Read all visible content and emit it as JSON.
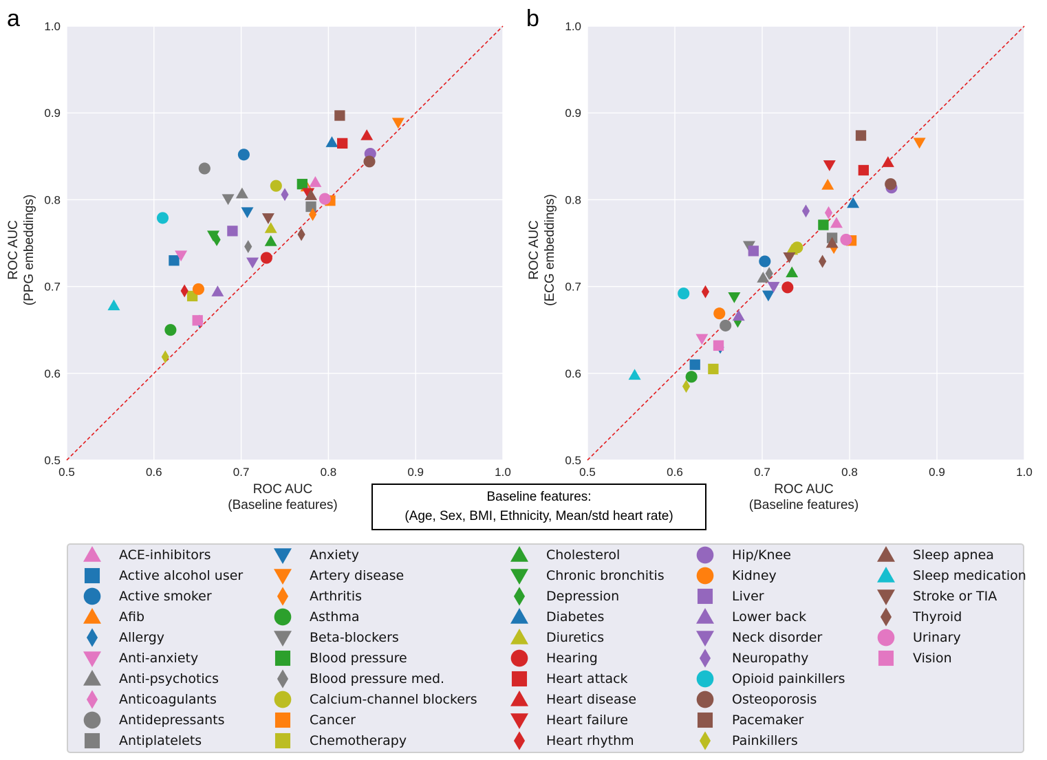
{
  "figure": {
    "baseline_title": "Baseline features:",
    "baseline_text": "(Age, Sex, BMI, Ethnicity, Mean/std heart rate)"
  },
  "colors": {
    "blue": "#1f77b4",
    "orange": "#ff7f0e",
    "green": "#2ca02c",
    "red": "#d62728",
    "purple": "#9467bd",
    "brown": "#8c564b",
    "pink": "#e377c2",
    "gray": "#7f7f7f",
    "olive": "#bcbd22",
    "cyan": "#17becf"
  },
  "legend": [
    {
      "label": "ACE-inhibitors",
      "color": "pink",
      "marker": "tri-up"
    },
    {
      "label": "Active alcohol user",
      "color": "blue",
      "marker": "square"
    },
    {
      "label": "Active smoker",
      "color": "blue",
      "marker": "circle"
    },
    {
      "label": "Afib",
      "color": "orange",
      "marker": "tri-up"
    },
    {
      "label": "Allergy",
      "color": "blue",
      "marker": "diamond"
    },
    {
      "label": "Anti-anxiety",
      "color": "pink",
      "marker": "tri-down"
    },
    {
      "label": "Anti-psychotics",
      "color": "gray",
      "marker": "tri-up"
    },
    {
      "label": "Anticoagulants",
      "color": "pink",
      "marker": "diamond"
    },
    {
      "label": "Antidepressants",
      "color": "gray",
      "marker": "circle"
    },
    {
      "label": "Antiplatelets",
      "color": "gray",
      "marker": "square"
    },
    {
      "label": "Anxiety",
      "color": "blue",
      "marker": "tri-down"
    },
    {
      "label": "Artery disease",
      "color": "orange",
      "marker": "tri-down"
    },
    {
      "label": "Arthritis",
      "color": "orange",
      "marker": "diamond"
    },
    {
      "label": "Asthma",
      "color": "green",
      "marker": "circle"
    },
    {
      "label": "Beta-blockers",
      "color": "gray",
      "marker": "tri-down"
    },
    {
      "label": "Blood pressure",
      "color": "green",
      "marker": "square"
    },
    {
      "label": "Blood pressure med.",
      "color": "gray",
      "marker": "diamond"
    },
    {
      "label": "Calcium-channel blockers",
      "color": "olive",
      "marker": "circle"
    },
    {
      "label": "Cancer",
      "color": "orange",
      "marker": "square"
    },
    {
      "label": "Chemotherapy",
      "color": "olive",
      "marker": "square"
    },
    {
      "label": "Cholesterol",
      "color": "green",
      "marker": "tri-up"
    },
    {
      "label": "Chronic bronchitis",
      "color": "green",
      "marker": "tri-down"
    },
    {
      "label": "Depression",
      "color": "green",
      "marker": "diamond"
    },
    {
      "label": "Diabetes",
      "color": "blue",
      "marker": "tri-up"
    },
    {
      "label": "Diuretics",
      "color": "olive",
      "marker": "tri-up"
    },
    {
      "label": "Hearing",
      "color": "red",
      "marker": "circle"
    },
    {
      "label": "Heart attack",
      "color": "red",
      "marker": "square"
    },
    {
      "label": "Heart disease",
      "color": "red",
      "marker": "tri-up"
    },
    {
      "label": "Heart failure",
      "color": "red",
      "marker": "tri-down"
    },
    {
      "label": "Heart rhythm",
      "color": "red",
      "marker": "diamond"
    },
    {
      "label": "Hip/Knee",
      "color": "purple",
      "marker": "circle"
    },
    {
      "label": "Kidney",
      "color": "orange",
      "marker": "circle"
    },
    {
      "label": "Liver",
      "color": "purple",
      "marker": "square"
    },
    {
      "label": "Lower back",
      "color": "purple",
      "marker": "tri-up"
    },
    {
      "label": "Neck disorder",
      "color": "purple",
      "marker": "tri-down"
    },
    {
      "label": "Neuropathy",
      "color": "purple",
      "marker": "diamond"
    },
    {
      "label": "Opioid painkillers",
      "color": "cyan",
      "marker": "circle"
    },
    {
      "label": "Osteoporosis",
      "color": "brown",
      "marker": "circle"
    },
    {
      "label": "Pacemaker",
      "color": "brown",
      "marker": "square"
    },
    {
      "label": "Painkillers",
      "color": "olive",
      "marker": "diamond"
    },
    {
      "label": "Sleep apnea",
      "color": "brown",
      "marker": "tri-up"
    },
    {
      "label": "Sleep medication",
      "color": "cyan",
      "marker": "tri-up"
    },
    {
      "label": "Stroke or TIA",
      "color": "brown",
      "marker": "tri-down"
    },
    {
      "label": "Thyroid",
      "color": "brown",
      "marker": "diamond"
    },
    {
      "label": "Urinary",
      "color": "pink",
      "marker": "circle"
    },
    {
      "label": "Vision",
      "color": "pink",
      "marker": "square"
    }
  ],
  "chart_data": [
    {
      "type": "scatter",
      "panel_label": "a",
      "xlabel": [
        "ROC AUC",
        "(Baseline features)"
      ],
      "ylabel": [
        "ROC AUC",
        "(PPG embeddings)"
      ],
      "xlim": [
        0.5,
        1.0
      ],
      "ylim": [
        0.5,
        1.0
      ],
      "xticks": [
        "0.5",
        "0.6",
        "0.7",
        "0.8",
        "0.9",
        "1.0"
      ],
      "yticks": [
        "0.5",
        "0.6",
        "0.7",
        "0.8",
        "0.9",
        "1.0"
      ],
      "diagonal": true,
      "points": [
        {
          "label": "ACE-inhibitors",
          "x": 0.785,
          "y": 0.82
        },
        {
          "label": "Active alcohol user",
          "x": 0.623,
          "y": 0.73
        },
        {
          "label": "Active smoker",
          "x": 0.703,
          "y": 0.852
        },
        {
          "label": "Afib",
          "x": 0.775,
          "y": 0.815
        },
        {
          "label": "Allergy",
          "x": 0.652,
          "y": 0.66
        },
        {
          "label": "Anti-anxiety",
          "x": 0.631,
          "y": 0.736
        },
        {
          "label": "Anti-psychotics",
          "x": 0.701,
          "y": 0.807
        },
        {
          "label": "Anticoagulants",
          "x": 0.776,
          "y": 0.81
        },
        {
          "label": "Antidepressants",
          "x": 0.658,
          "y": 0.836
        },
        {
          "label": "Antiplatelets",
          "x": 0.78,
          "y": 0.792
        },
        {
          "label": "Anxiety",
          "x": 0.707,
          "y": 0.786
        },
        {
          "label": "Artery disease",
          "x": 0.88,
          "y": 0.889
        },
        {
          "label": "Arthritis",
          "x": 0.782,
          "y": 0.783
        },
        {
          "label": "Asthma",
          "x": 0.619,
          "y": 0.65
        },
        {
          "label": "Beta-blockers",
          "x": 0.685,
          "y": 0.801
        },
        {
          "label": "Blood pressure",
          "x": 0.77,
          "y": 0.818
        },
        {
          "label": "Blood pressure med.",
          "x": 0.708,
          "y": 0.746
        },
        {
          "label": "Calcium-channel blockers",
          "x": 0.74,
          "y": 0.816
        },
        {
          "label": "Cancer",
          "x": 0.802,
          "y": 0.799
        },
        {
          "label": "Chemotherapy",
          "x": 0.644,
          "y": 0.689
        },
        {
          "label": "Cholesterol",
          "x": 0.734,
          "y": 0.752
        },
        {
          "label": "Chronic bronchitis",
          "x": 0.668,
          "y": 0.759
        },
        {
          "label": "Depression",
          "x": 0.672,
          "y": 0.754
        },
        {
          "label": "Diabetes",
          "x": 0.804,
          "y": 0.866
        },
        {
          "label": "Diuretics",
          "x": 0.734,
          "y": 0.767
        },
        {
          "label": "Hearing",
          "x": 0.729,
          "y": 0.733
        },
        {
          "label": "Heart attack",
          "x": 0.816,
          "y": 0.865
        },
        {
          "label": "Heart disease",
          "x": 0.844,
          "y": 0.874
        },
        {
          "label": "Heart failure",
          "x": 0.777,
          "y": 0.808
        },
        {
          "label": "Heart rhythm",
          "x": 0.635,
          "y": 0.695
        },
        {
          "label": "Hip/Knee",
          "x": 0.848,
          "y": 0.853
        },
        {
          "label": "Kidney",
          "x": 0.651,
          "y": 0.697
        },
        {
          "label": "Liver",
          "x": 0.69,
          "y": 0.764
        },
        {
          "label": "Lower back",
          "x": 0.673,
          "y": 0.694
        },
        {
          "label": "Neck disorder",
          "x": 0.713,
          "y": 0.728
        },
        {
          "label": "Neuropathy",
          "x": 0.75,
          "y": 0.806
        },
        {
          "label": "Opioid painkillers",
          "x": 0.61,
          "y": 0.779
        },
        {
          "label": "Osteoporosis",
          "x": 0.847,
          "y": 0.844
        },
        {
          "label": "Pacemaker",
          "x": 0.813,
          "y": 0.897
        },
        {
          "label": "Painkillers",
          "x": 0.613,
          "y": 0.619
        },
        {
          "label": "Sleep apnea",
          "x": 0.78,
          "y": 0.805
        },
        {
          "label": "Sleep medication",
          "x": 0.554,
          "y": 0.678
        },
        {
          "label": "Stroke or TIA",
          "x": 0.731,
          "y": 0.779
        },
        {
          "label": "Thyroid",
          "x": 0.769,
          "y": 0.76
        },
        {
          "label": "Urinary",
          "x": 0.796,
          "y": 0.801
        },
        {
          "label": "Vision",
          "x": 0.65,
          "y": 0.661
        }
      ]
    },
    {
      "type": "scatter",
      "panel_label": "b",
      "xlabel": [
        "ROC AUC",
        "(Baseline features)"
      ],
      "ylabel": [
        "ROC AUC",
        "(ECG embeddings)"
      ],
      "xlim": [
        0.5,
        1.0
      ],
      "ylim": [
        0.5,
        1.0
      ],
      "xticks": [
        "0.5",
        "0.6",
        "0.7",
        "0.8",
        "0.9",
        "1.0"
      ],
      "yticks": [
        "0.5",
        "0.6",
        "0.7",
        "0.8",
        "0.9",
        "1.0"
      ],
      "diagonal": true,
      "points": [
        {
          "label": "ACE-inhibitors",
          "x": 0.785,
          "y": 0.773
        },
        {
          "label": "Active alcohol user",
          "x": 0.623,
          "y": 0.61
        },
        {
          "label": "Active smoker",
          "x": 0.703,
          "y": 0.729
        },
        {
          "label": "Afib",
          "x": 0.775,
          "y": 0.817
        },
        {
          "label": "Allergy",
          "x": 0.652,
          "y": 0.63
        },
        {
          "label": "Anti-anxiety",
          "x": 0.631,
          "y": 0.64
        },
        {
          "label": "Anti-psychotics",
          "x": 0.701,
          "y": 0.71
        },
        {
          "label": "Anticoagulants",
          "x": 0.776,
          "y": 0.785
        },
        {
          "label": "Antidepressants",
          "x": 0.658,
          "y": 0.655
        },
        {
          "label": "Antiplatelets",
          "x": 0.78,
          "y": 0.756
        },
        {
          "label": "Anxiety",
          "x": 0.707,
          "y": 0.69
        },
        {
          "label": "Artery disease",
          "x": 0.88,
          "y": 0.866
        },
        {
          "label": "Arthritis",
          "x": 0.782,
          "y": 0.745
        },
        {
          "label": "Asthma",
          "x": 0.619,
          "y": 0.596
        },
        {
          "label": "Beta-blockers",
          "x": 0.685,
          "y": 0.747
        },
        {
          "label": "Blood pressure",
          "x": 0.77,
          "y": 0.771
        },
        {
          "label": "Blood pressure med.",
          "x": 0.708,
          "y": 0.715
        },
        {
          "label": "Calcium-channel blockers",
          "x": 0.74,
          "y": 0.745
        },
        {
          "label": "Cancer",
          "x": 0.802,
          "y": 0.753
        },
        {
          "label": "Chemotherapy",
          "x": 0.644,
          "y": 0.605
        },
        {
          "label": "Cholesterol",
          "x": 0.734,
          "y": 0.716
        },
        {
          "label": "Chronic bronchitis",
          "x": 0.668,
          "y": 0.688
        },
        {
          "label": "Depression",
          "x": 0.672,
          "y": 0.66
        },
        {
          "label": "Diabetes",
          "x": 0.804,
          "y": 0.796
        },
        {
          "label": "Diuretics",
          "x": 0.734,
          "y": 0.742
        },
        {
          "label": "Hearing",
          "x": 0.729,
          "y": 0.699
        },
        {
          "label": "Heart attack",
          "x": 0.816,
          "y": 0.834
        },
        {
          "label": "Heart disease",
          "x": 0.844,
          "y": 0.843
        },
        {
          "label": "Heart failure",
          "x": 0.777,
          "y": 0.84
        },
        {
          "label": "Heart rhythm",
          "x": 0.635,
          "y": 0.694
        },
        {
          "label": "Hip/Knee",
          "x": 0.848,
          "y": 0.814
        },
        {
          "label": "Kidney",
          "x": 0.651,
          "y": 0.669
        },
        {
          "label": "Liver",
          "x": 0.69,
          "y": 0.741
        },
        {
          "label": "Lower back",
          "x": 0.673,
          "y": 0.666
        },
        {
          "label": "Neck disorder",
          "x": 0.713,
          "y": 0.7
        },
        {
          "label": "Neuropathy",
          "x": 0.75,
          "y": 0.787
        },
        {
          "label": "Opioid painkillers",
          "x": 0.61,
          "y": 0.692
        },
        {
          "label": "Osteoporosis",
          "x": 0.847,
          "y": 0.818
        },
        {
          "label": "Pacemaker",
          "x": 0.813,
          "y": 0.874
        },
        {
          "label": "Painkillers",
          "x": 0.613,
          "y": 0.585
        },
        {
          "label": "Sleep apnea",
          "x": 0.78,
          "y": 0.75
        },
        {
          "label": "Sleep medication",
          "x": 0.554,
          "y": 0.598
        },
        {
          "label": "Stroke or TIA",
          "x": 0.731,
          "y": 0.734
        },
        {
          "label": "Thyroid",
          "x": 0.769,
          "y": 0.729
        },
        {
          "label": "Urinary",
          "x": 0.796,
          "y": 0.754
        },
        {
          "label": "Vision",
          "x": 0.65,
          "y": 0.632
        }
      ]
    }
  ]
}
